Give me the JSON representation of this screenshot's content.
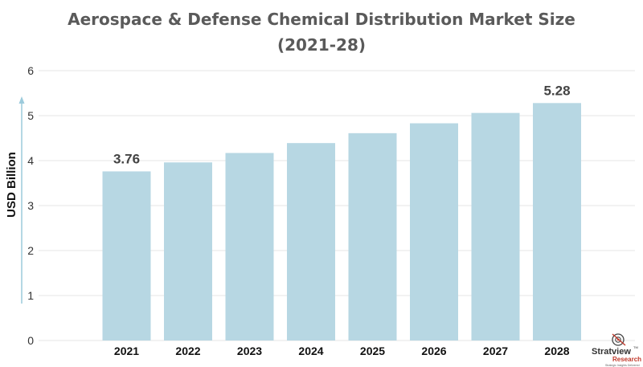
{
  "chart_data": {
    "type": "bar",
    "title_lines": [
      "Aerospace & Defense Chemical Distribution Market Size",
      "(2021-28)"
    ],
    "ylabel": "USD Billion",
    "categories": [
      "2021",
      "2022",
      "2023",
      "2024",
      "2025",
      "2026",
      "2027",
      "2028"
    ],
    "values": [
      3.76,
      3.96,
      4.17,
      4.39,
      4.61,
      4.83,
      5.06,
      5.28
    ],
    "data_labels": [
      {
        "category": "2021",
        "text": "3.76"
      },
      {
        "category": "2028",
        "text": "5.28"
      }
    ],
    "ylim": [
      0,
      6
    ],
    "yticks": [
      "0",
      "1",
      "2",
      "3",
      "4",
      "5",
      "6"
    ],
    "grid": true,
    "bar_color": "#b7d7e3"
  },
  "watermark": {
    "name": "Stratview",
    "tm": "TM",
    "sub": "Research",
    "tagline": "Strategic Insights Delivered"
  }
}
